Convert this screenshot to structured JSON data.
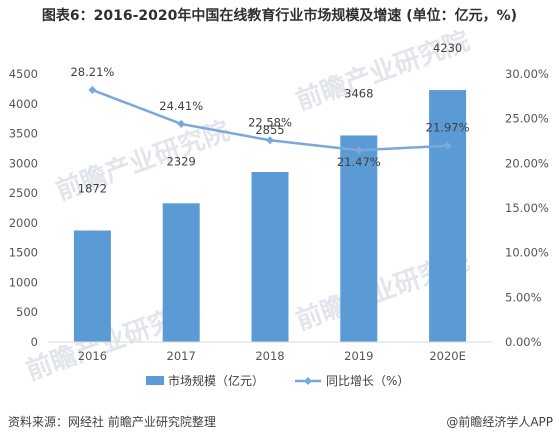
{
  "title": "图表6：2016-2020年中国在线教育行业市场规模及增速 (单位：亿元，%)",
  "watermark": "前瞻产业研究院",
  "source": "资料来源：网经社 前瞻产业研究院整理",
  "brand": "@前瞻经济学人APP",
  "colors": {
    "bar": "#5b9bd5",
    "line": "#7aa7dc",
    "grid": "#d9d9d9"
  },
  "chart_data": {
    "type": "bar",
    "categories": [
      "2016",
      "2017",
      "2018",
      "2019",
      "2020E"
    ],
    "series": [
      {
        "name": "市场规模（亿元）",
        "type": "bar",
        "axis": "left",
        "values": [
          1872,
          2329,
          2855,
          3468,
          4230
        ],
        "labels": [
          "1872",
          "2329",
          "2855",
          "3468",
          "4230"
        ]
      },
      {
        "name": "同比增长（%）",
        "type": "line",
        "axis": "right",
        "values": [
          28.21,
          24.41,
          22.58,
          21.47,
          21.97
        ],
        "labels": [
          "28.21%",
          "24.41%",
          "22.58%",
          "21.47%",
          "21.97%"
        ]
      }
    ],
    "y_left": {
      "min": 0,
      "max": 4500,
      "step": 500,
      "ticks": [
        "0",
        "500",
        "1000",
        "1500",
        "2000",
        "2500",
        "3000",
        "3500",
        "4000",
        "4500"
      ]
    },
    "y_right": {
      "min": 0,
      "max": 30,
      "step": 5,
      "ticks": [
        "0.00%",
        "5.00%",
        "10.00%",
        "15.00%",
        "20.00%",
        "25.00%",
        "30.00%"
      ]
    },
    "grid": false,
    "legend": "bottom"
  }
}
